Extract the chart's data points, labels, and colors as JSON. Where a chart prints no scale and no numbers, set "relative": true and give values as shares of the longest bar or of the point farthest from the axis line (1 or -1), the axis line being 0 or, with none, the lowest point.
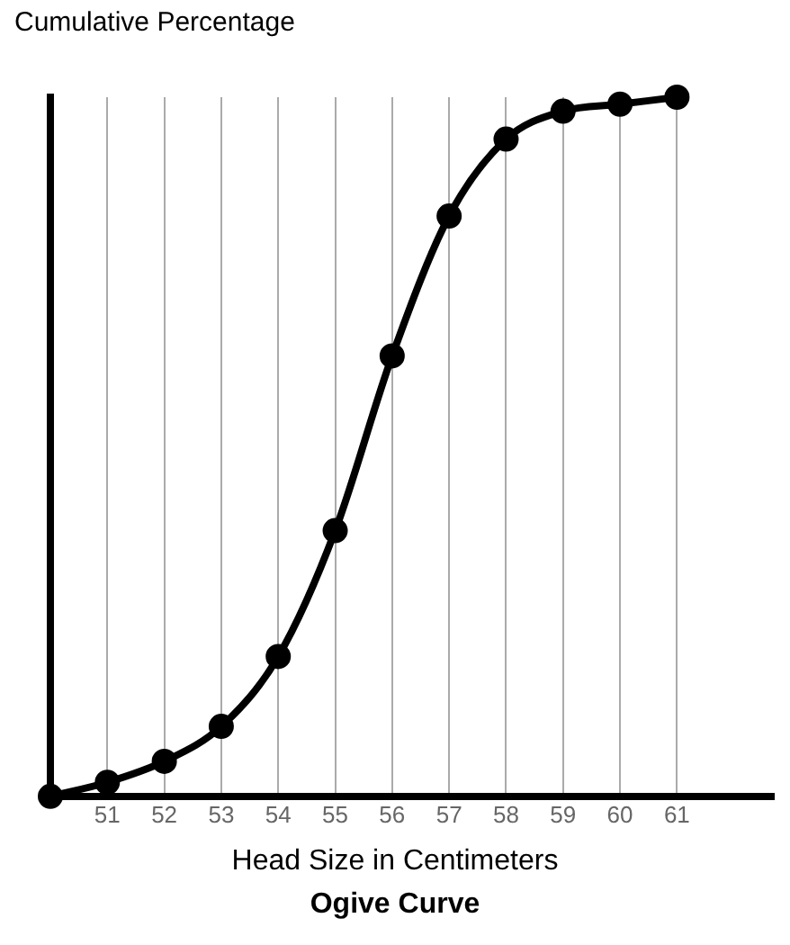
{
  "chart_data": {
    "type": "line",
    "title": "Ogive Curve",
    "xlabel": "Head Size in Centimeters",
    "ylabel": "Cumulative Percentage",
    "relative": true,
    "x": [
      50,
      51,
      52,
      53,
      54,
      55,
      56,
      57,
      58,
      59,
      60,
      61
    ],
    "series": [
      {
        "color": "#000000",
        "values": [
          0,
          0.02,
          0.05,
          0.1,
          0.2,
          0.38,
          0.63,
          0.83,
          0.94,
          0.98,
          0.99,
          1
        ]
      }
    ],
    "xlim": [
      50,
      62.7
    ],
    "xticks": [
      {
        "value": 50,
        "label": null
      },
      51,
      52,
      53,
      54,
      55,
      56,
      57,
      58,
      59,
      60,
      61
    ],
    "grid": "x",
    "legend": false,
    "marker": "circle",
    "line_style": "solid"
  }
}
